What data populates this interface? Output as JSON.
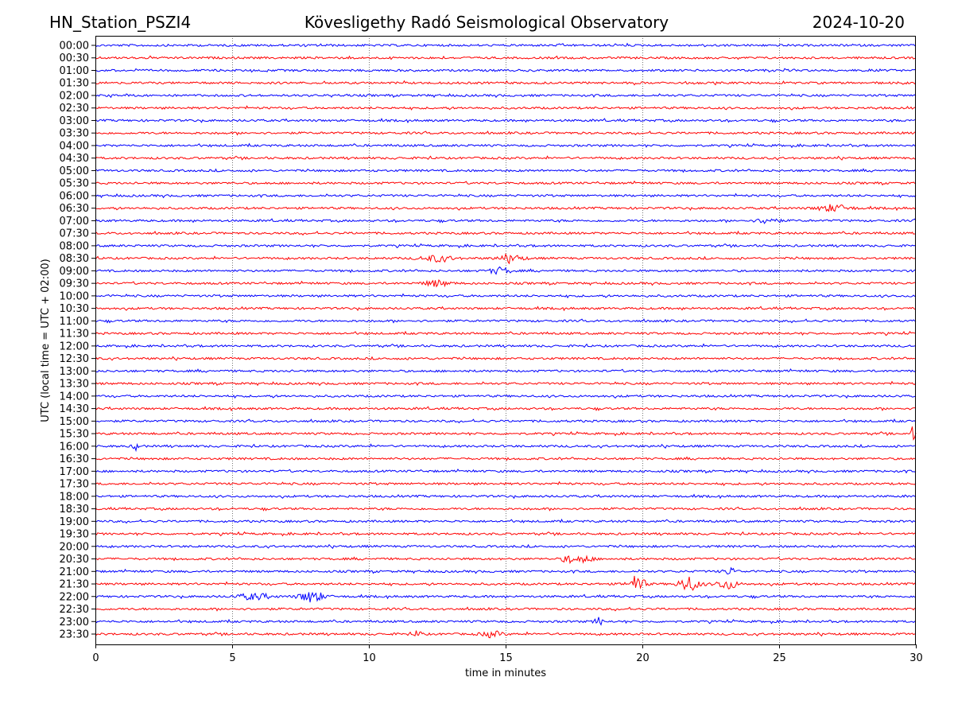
{
  "chart_data": {
    "type": "line",
    "title_left": "HN_Station_PSZI4",
    "title": "Kövesligethy Radó Seismological Observatory",
    "title_right": "2024-10-20",
    "xlabel": "time in minutes",
    "ylabel": "UTC (local time = UTC + 02:00)",
    "xlim": [
      0,
      30
    ],
    "xticks": [
      "0",
      "5",
      "10",
      "15",
      "20",
      "25",
      "30"
    ],
    "grid": "vertical dotted at every 5 minutes",
    "series_colors": [
      "#0000ff",
      "#ff0000"
    ],
    "rows": [
      "00:00",
      "00:30",
      "01:00",
      "01:30",
      "02:00",
      "02:30",
      "03:00",
      "03:30",
      "04:00",
      "04:30",
      "05:00",
      "05:30",
      "06:00",
      "06:30",
      "07:00",
      "07:30",
      "08:00",
      "08:30",
      "09:00",
      "09:30",
      "10:00",
      "10:30",
      "11:00",
      "11:30",
      "12:00",
      "12:30",
      "13:00",
      "13:30",
      "14:00",
      "14:30",
      "15:00",
      "15:30",
      "16:00",
      "16:30",
      "17:00",
      "17:30",
      "18:00",
      "18:30",
      "19:00",
      "19:30",
      "20:00",
      "20:30",
      "21:00",
      "21:30",
      "22:00",
      "22:30",
      "23:00",
      "23:30"
    ],
    "events": [
      {
        "row": "06:30",
        "minute": 27.0,
        "amp": 2.0,
        "dur": 0.8
      },
      {
        "row": "07:00",
        "minute": 24.6,
        "amp": 2.0,
        "dur": 0.5
      },
      {
        "row": "08:30",
        "minute": 12.5,
        "amp": 1.8,
        "dur": 0.8
      },
      {
        "row": "08:30",
        "minute": 15.2,
        "amp": 2.2,
        "dur": 0.6
      },
      {
        "row": "09:00",
        "minute": 14.8,
        "amp": 2.0,
        "dur": 0.5
      },
      {
        "row": "09:30",
        "minute": 12.5,
        "amp": 1.8,
        "dur": 0.6
      },
      {
        "row": "15:30",
        "minute": 29.9,
        "amp": 5.0,
        "dur": 0.1
      },
      {
        "row": "16:00",
        "minute": 1.5,
        "amp": 3.0,
        "dur": 0.15
      },
      {
        "row": "20:30",
        "minute": 17.3,
        "amp": 2.5,
        "dur": 0.3
      },
      {
        "row": "20:30",
        "minute": 17.9,
        "amp": 2.0,
        "dur": 0.4
      },
      {
        "row": "21:00",
        "minute": 23.2,
        "amp": 2.2,
        "dur": 0.3
      },
      {
        "row": "21:30",
        "minute": 19.8,
        "amp": 5.0,
        "dur": 0.4
      },
      {
        "row": "21:30",
        "minute": 21.7,
        "amp": 4.5,
        "dur": 0.5
      },
      {
        "row": "21:30",
        "minute": 23.1,
        "amp": 3.0,
        "dur": 0.5
      },
      {
        "row": "22:00",
        "minute": 5.8,
        "amp": 1.8,
        "dur": 0.8
      },
      {
        "row": "22:00",
        "minute": 7.9,
        "amp": 3.5,
        "dur": 0.6
      },
      {
        "row": "23:00",
        "minute": 18.4,
        "amp": 2.5,
        "dur": 0.2
      },
      {
        "row": "23:30",
        "minute": 11.8,
        "amp": 3.0,
        "dur": 0.15
      },
      {
        "row": "23:30",
        "minute": 14.5,
        "amp": 1.8,
        "dur": 0.5
      }
    ]
  }
}
